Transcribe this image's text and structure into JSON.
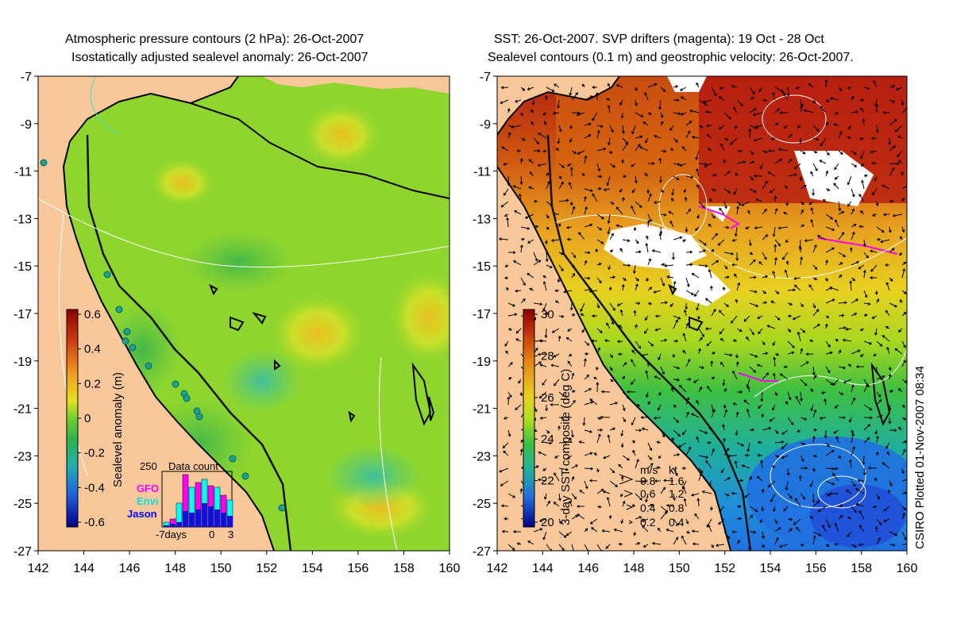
{
  "left_panel": {
    "title_line1": "Atmospheric pressure contours (2 hPa): 26-Oct-2007",
    "title_line2": "Isostatically adjusted sealevel anomaly: 26-Oct-2007",
    "colorbar": {
      "label": "Sealevel anomaly (m)",
      "ticks": [
        "0.6",
        "0.4",
        "0.2",
        "0",
        "-0.2",
        "-0.4",
        "-0.6"
      ],
      "range": [
        -0.6,
        0.6
      ]
    },
    "inset": {
      "title": "Data count",
      "y_tick": "250",
      "legend": [
        {
          "name": "GFO",
          "color": "#ff00ff"
        },
        {
          "name": "Envi",
          "color": "#00ffff"
        },
        {
          "name": "Jason",
          "color": "#0000ff"
        }
      ],
      "x_labels": [
        "-7days",
        "0",
        "3"
      ]
    }
  },
  "right_panel": {
    "title_line1": "SST: 26-Oct-2007. SVP drifters (magenta): 19 Oct - 28 Oct",
    "title_line2": "Sealevel contours (0.1 m) and geostrophic velocity: 26-Oct-2007.",
    "colorbar": {
      "label": "3-day SST composite (deg C)",
      "ticks": [
        "30",
        "28",
        "26",
        "24",
        "22",
        "20"
      ],
      "range": [
        20,
        30
      ]
    },
    "velocity_legend": {
      "header_ms": "m/s",
      "header_kt": "kt",
      "rows": [
        {
          "ms": "0.8",
          "kt": "1.6"
        },
        {
          "ms": "0.6",
          "kt": "1.2"
        },
        {
          "ms": "0.4",
          "kt": "0.8"
        },
        {
          "ms": "0.2",
          "kt": "0.4"
        }
      ]
    }
  },
  "axes": {
    "lat_ticks": [
      "-7",
      "-9",
      "-11",
      "-13",
      "-15",
      "-17",
      "-19",
      "-21",
      "-23",
      "-25",
      "-27"
    ],
    "lon_ticks": [
      "142",
      "144",
      "146",
      "148",
      "150",
      "152",
      "154",
      "156",
      "158",
      "160"
    ]
  },
  "credit": "CSIRO Plotted 01-Nov-2007 08:34",
  "colors": {
    "land": "#f9c89a",
    "ocean_green": "#7ed321",
    "warm": "#c0301a",
    "coast": "#000000"
  }
}
